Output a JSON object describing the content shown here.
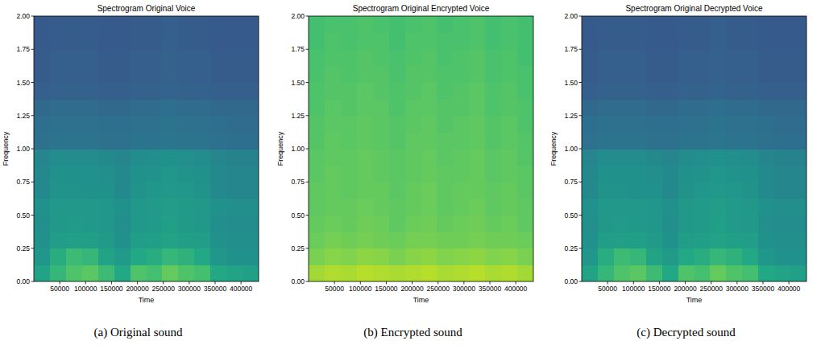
{
  "chart_data": [
    {
      "type": "heatmap",
      "title": "Spectrogram Original Voice",
      "x_label": "Time",
      "y_label": "Frequency",
      "caption": "(a) Original sound",
      "xlim": [
        0,
        434000
      ],
      "ylim": [
        0,
        2
      ],
      "xticks": [
        50000,
        100000,
        150000,
        200000,
        250000,
        300000,
        350000,
        400000
      ],
      "yticks": [
        {
          "value": 0,
          "label": "0.00"
        },
        {
          "value": 0.25,
          "label": "0.25"
        },
        {
          "value": 0.5,
          "label": "0.50"
        },
        {
          "value": 0.75,
          "label": "0.75"
        },
        {
          "value": 1,
          "label": "1.00"
        },
        {
          "value": 1.25,
          "label": "1.25"
        },
        {
          "value": 1.5,
          "label": "1.50"
        },
        {
          "value": 1.75,
          "label": "1.75"
        },
        {
          "value": 2,
          "label": "2.00"
        }
      ],
      "time_bins": [
        0,
        31000,
        62000,
        93000,
        124000,
        155000,
        186000,
        217000,
        248000,
        279000,
        310000,
        341000,
        372000,
        403000,
        434000
      ],
      "freq_bins": [
        0,
        0.125,
        0.25,
        0.375,
        0.5,
        0.625,
        0.75,
        0.875,
        1,
        1.125,
        1.25,
        1.375,
        1.5,
        1.625,
        1.75,
        1.875,
        2
      ],
      "value_range": [
        0,
        1
      ],
      "cells": [
        [
          0.58,
          0.66,
          0.72,
          0.74,
          0.68,
          0.6,
          0.72,
          0.7,
          0.76,
          0.72,
          0.7,
          0.6,
          0.58,
          0.56
        ],
        [
          0.52,
          0.62,
          0.68,
          0.66,
          0.58,
          0.54,
          0.6,
          0.62,
          0.66,
          0.64,
          0.6,
          0.52,
          0.5,
          0.5
        ],
        [
          0.5,
          0.55,
          0.56,
          0.56,
          0.54,
          0.5,
          0.55,
          0.56,
          0.58,
          0.56,
          0.55,
          0.5,
          0.49,
          0.49
        ],
        [
          0.49,
          0.53,
          0.54,
          0.53,
          0.52,
          0.49,
          0.53,
          0.54,
          0.56,
          0.54,
          0.53,
          0.49,
          0.48,
          0.48
        ],
        [
          0.5,
          0.53,
          0.53,
          0.53,
          0.52,
          0.5,
          0.53,
          0.54,
          0.55,
          0.54,
          0.53,
          0.5,
          0.49,
          0.49
        ],
        [
          0.47,
          0.51,
          0.51,
          0.5,
          0.5,
          0.47,
          0.51,
          0.52,
          0.53,
          0.52,
          0.51,
          0.47,
          0.46,
          0.46
        ],
        [
          0.47,
          0.5,
          0.5,
          0.5,
          0.49,
          0.47,
          0.5,
          0.51,
          0.52,
          0.51,
          0.5,
          0.47,
          0.46,
          0.46
        ],
        [
          0.45,
          0.48,
          0.48,
          0.48,
          0.47,
          0.45,
          0.48,
          0.49,
          0.5,
          0.49,
          0.48,
          0.45,
          0.44,
          0.44
        ],
        [
          0.37,
          0.38,
          0.38,
          0.38,
          0.37,
          0.37,
          0.38,
          0.38,
          0.39,
          0.38,
          0.38,
          0.37,
          0.36,
          0.36
        ],
        [
          0.36,
          0.37,
          0.37,
          0.37,
          0.36,
          0.36,
          0.37,
          0.37,
          0.38,
          0.37,
          0.37,
          0.36,
          0.35,
          0.35
        ],
        [
          0.34,
          0.35,
          0.35,
          0.35,
          0.34,
          0.34,
          0.35,
          0.35,
          0.36,
          0.35,
          0.35,
          0.34,
          0.34,
          0.34
        ],
        [
          0.3,
          0.31,
          0.31,
          0.31,
          0.3,
          0.3,
          0.31,
          0.31,
          0.32,
          0.31,
          0.31,
          0.3,
          0.3,
          0.3
        ],
        [
          0.29,
          0.3,
          0.3,
          0.3,
          0.29,
          0.29,
          0.3,
          0.3,
          0.31,
          0.3,
          0.3,
          0.29,
          0.29,
          0.29
        ],
        [
          0.29,
          0.3,
          0.3,
          0.3,
          0.29,
          0.29,
          0.3,
          0.3,
          0.31,
          0.3,
          0.3,
          0.29,
          0.29,
          0.29
        ],
        [
          0.28,
          0.29,
          0.29,
          0.29,
          0.28,
          0.28,
          0.29,
          0.29,
          0.3,
          0.29,
          0.29,
          0.28,
          0.28,
          0.28
        ],
        [
          0.28,
          0.29,
          0.29,
          0.29,
          0.28,
          0.28,
          0.29,
          0.29,
          0.3,
          0.29,
          0.29,
          0.28,
          0.28,
          0.28
        ]
      ]
    },
    {
      "type": "heatmap",
      "title": "Spectrogram Original Encrypted Voice",
      "x_label": "Time",
      "y_label": "Frequency",
      "caption": "(b) Encrypted sound",
      "xlim": [
        0,
        434000
      ],
      "ylim": [
        0,
        2
      ],
      "xticks": [
        50000,
        100000,
        150000,
        200000,
        250000,
        300000,
        350000,
        400000
      ],
      "yticks": [
        {
          "value": 0,
          "label": "0.00"
        },
        {
          "value": 0.25,
          "label": "0.25"
        },
        {
          "value": 0.5,
          "label": "0.50"
        },
        {
          "value": 0.75,
          "label": "0.75"
        },
        {
          "value": 1,
          "label": "1.00"
        },
        {
          "value": 1.25,
          "label": "1.25"
        },
        {
          "value": 1.5,
          "label": "1.50"
        },
        {
          "value": 1.75,
          "label": "1.75"
        },
        {
          "value": 2,
          "label": "2.00"
        }
      ],
      "time_bins": [
        0,
        31000,
        62000,
        93000,
        124000,
        155000,
        186000,
        217000,
        248000,
        279000,
        310000,
        341000,
        372000,
        403000,
        434000
      ],
      "freq_bins": [
        0,
        0.125,
        0.25,
        0.375,
        0.5,
        0.625,
        0.75,
        0.875,
        1,
        1.125,
        1.25,
        1.375,
        1.5,
        1.625,
        1.75,
        1.875,
        2
      ],
      "value_range": [
        0,
        1
      ],
      "cells": [
        [
          0.86,
          0.88,
          0.87,
          0.89,
          0.88,
          0.87,
          0.88,
          0.89,
          0.87,
          0.88,
          0.89,
          0.87,
          0.88,
          0.86
        ],
        [
          0.8,
          0.82,
          0.81,
          0.83,
          0.82,
          0.8,
          0.82,
          0.83,
          0.81,
          0.82,
          0.83,
          0.81,
          0.82,
          0.8
        ],
        [
          0.77,
          0.79,
          0.78,
          0.79,
          0.78,
          0.77,
          0.79,
          0.79,
          0.78,
          0.78,
          0.79,
          0.78,
          0.78,
          0.77
        ],
        [
          0.76,
          0.77,
          0.76,
          0.78,
          0.77,
          0.75,
          0.77,
          0.78,
          0.76,
          0.77,
          0.78,
          0.76,
          0.77,
          0.75
        ],
        [
          0.75,
          0.76,
          0.76,
          0.77,
          0.76,
          0.75,
          0.76,
          0.77,
          0.75,
          0.76,
          0.77,
          0.75,
          0.76,
          0.75
        ],
        [
          0.75,
          0.76,
          0.75,
          0.76,
          0.76,
          0.74,
          0.76,
          0.77,
          0.75,
          0.76,
          0.76,
          0.75,
          0.76,
          0.74
        ],
        [
          0.74,
          0.76,
          0.75,
          0.76,
          0.75,
          0.74,
          0.75,
          0.76,
          0.75,
          0.75,
          0.76,
          0.74,
          0.75,
          0.74
        ],
        [
          0.74,
          0.75,
          0.75,
          0.76,
          0.75,
          0.74,
          0.75,
          0.76,
          0.74,
          0.75,
          0.76,
          0.74,
          0.75,
          0.73
        ],
        [
          0.73,
          0.75,
          0.74,
          0.75,
          0.74,
          0.73,
          0.75,
          0.75,
          0.74,
          0.74,
          0.75,
          0.73,
          0.74,
          0.73
        ],
        [
          0.73,
          0.74,
          0.74,
          0.75,
          0.74,
          0.73,
          0.74,
          0.75,
          0.73,
          0.74,
          0.75,
          0.73,
          0.74,
          0.72
        ],
        [
          0.72,
          0.74,
          0.73,
          0.74,
          0.74,
          0.72,
          0.74,
          0.74,
          0.73,
          0.73,
          0.74,
          0.72,
          0.73,
          0.72
        ],
        [
          0.72,
          0.73,
          0.73,
          0.74,
          0.73,
          0.72,
          0.73,
          0.74,
          0.72,
          0.73,
          0.74,
          0.72,
          0.73,
          0.71
        ],
        [
          0.71,
          0.73,
          0.72,
          0.73,
          0.73,
          0.71,
          0.73,
          0.73,
          0.72,
          0.72,
          0.73,
          0.71,
          0.72,
          0.71
        ],
        [
          0.71,
          0.72,
          0.72,
          0.73,
          0.72,
          0.71,
          0.72,
          0.73,
          0.71,
          0.72,
          0.73,
          0.71,
          0.72,
          0.7
        ],
        [
          0.7,
          0.72,
          0.71,
          0.72,
          0.72,
          0.7,
          0.72,
          0.72,
          0.71,
          0.71,
          0.72,
          0.7,
          0.71,
          0.7
        ],
        [
          0.7,
          0.71,
          0.71,
          0.72,
          0.71,
          0.7,
          0.71,
          0.72,
          0.7,
          0.71,
          0.72,
          0.7,
          0.71,
          0.7
        ]
      ]
    },
    {
      "type": "heatmap",
      "title": "Spectrogram Original Decrypted Voice",
      "x_label": "Time",
      "y_label": "Frequency",
      "caption": "(c) Decrypted sound",
      "xlim": [
        0,
        434000
      ],
      "ylim": [
        0,
        2
      ],
      "xticks": [
        50000,
        100000,
        150000,
        200000,
        250000,
        300000,
        350000,
        400000
      ],
      "yticks": [
        {
          "value": 0,
          "label": "0.00"
        },
        {
          "value": 0.25,
          "label": "0.25"
        },
        {
          "value": 0.5,
          "label": "0.50"
        },
        {
          "value": 0.75,
          "label": "0.75"
        },
        {
          "value": 1,
          "label": "1.00"
        },
        {
          "value": 1.25,
          "label": "1.25"
        },
        {
          "value": 1.5,
          "label": "1.50"
        },
        {
          "value": 1.75,
          "label": "1.75"
        },
        {
          "value": 2,
          "label": "2.00"
        }
      ],
      "time_bins": [
        0,
        31000,
        62000,
        93000,
        124000,
        155000,
        186000,
        217000,
        248000,
        279000,
        310000,
        341000,
        372000,
        403000,
        434000
      ],
      "freq_bins": [
        0,
        0.125,
        0.25,
        0.375,
        0.5,
        0.625,
        0.75,
        0.875,
        1,
        1.125,
        1.25,
        1.375,
        1.5,
        1.625,
        1.75,
        1.875,
        2
      ],
      "value_range": [
        0,
        1
      ],
      "cells": [
        [
          0.58,
          0.66,
          0.72,
          0.74,
          0.68,
          0.6,
          0.72,
          0.7,
          0.76,
          0.72,
          0.7,
          0.6,
          0.58,
          0.56
        ],
        [
          0.52,
          0.62,
          0.68,
          0.66,
          0.58,
          0.54,
          0.6,
          0.62,
          0.66,
          0.64,
          0.6,
          0.52,
          0.5,
          0.5
        ],
        [
          0.5,
          0.55,
          0.56,
          0.56,
          0.54,
          0.5,
          0.55,
          0.56,
          0.58,
          0.56,
          0.55,
          0.5,
          0.49,
          0.49
        ],
        [
          0.49,
          0.53,
          0.54,
          0.53,
          0.52,
          0.49,
          0.53,
          0.54,
          0.56,
          0.54,
          0.53,
          0.49,
          0.48,
          0.48
        ],
        [
          0.5,
          0.53,
          0.53,
          0.53,
          0.52,
          0.5,
          0.53,
          0.54,
          0.55,
          0.54,
          0.53,
          0.5,
          0.49,
          0.49
        ],
        [
          0.47,
          0.51,
          0.51,
          0.5,
          0.5,
          0.47,
          0.51,
          0.52,
          0.53,
          0.52,
          0.51,
          0.47,
          0.46,
          0.46
        ],
        [
          0.47,
          0.5,
          0.5,
          0.5,
          0.49,
          0.47,
          0.5,
          0.51,
          0.52,
          0.51,
          0.5,
          0.47,
          0.46,
          0.46
        ],
        [
          0.45,
          0.48,
          0.48,
          0.48,
          0.47,
          0.45,
          0.48,
          0.49,
          0.5,
          0.49,
          0.48,
          0.45,
          0.44,
          0.44
        ],
        [
          0.37,
          0.38,
          0.38,
          0.38,
          0.37,
          0.37,
          0.38,
          0.38,
          0.39,
          0.38,
          0.38,
          0.37,
          0.36,
          0.36
        ],
        [
          0.36,
          0.37,
          0.37,
          0.37,
          0.36,
          0.36,
          0.37,
          0.37,
          0.38,
          0.37,
          0.37,
          0.36,
          0.35,
          0.35
        ],
        [
          0.34,
          0.35,
          0.35,
          0.35,
          0.34,
          0.34,
          0.35,
          0.35,
          0.36,
          0.35,
          0.35,
          0.34,
          0.34,
          0.34
        ],
        [
          0.3,
          0.31,
          0.31,
          0.31,
          0.3,
          0.3,
          0.31,
          0.31,
          0.32,
          0.31,
          0.31,
          0.3,
          0.3,
          0.3
        ],
        [
          0.29,
          0.3,
          0.3,
          0.3,
          0.29,
          0.29,
          0.3,
          0.3,
          0.31,
          0.3,
          0.3,
          0.29,
          0.29,
          0.29
        ],
        [
          0.29,
          0.3,
          0.3,
          0.3,
          0.29,
          0.29,
          0.3,
          0.3,
          0.31,
          0.3,
          0.3,
          0.29,
          0.29,
          0.29
        ],
        [
          0.28,
          0.29,
          0.29,
          0.29,
          0.28,
          0.28,
          0.29,
          0.29,
          0.3,
          0.29,
          0.29,
          0.28,
          0.28,
          0.28
        ],
        [
          0.28,
          0.29,
          0.29,
          0.29,
          0.28,
          0.28,
          0.29,
          0.29,
          0.3,
          0.29,
          0.29,
          0.28,
          0.28,
          0.28
        ]
      ]
    }
  ]
}
